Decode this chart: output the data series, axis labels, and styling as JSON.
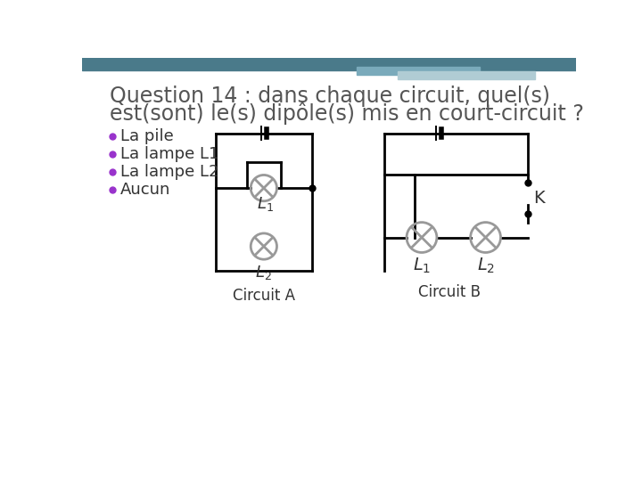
{
  "title_line1": "Question 14 : dans chaque circuit, quel(s)",
  "title_line2": "est(sont) le(s) dipôle(s) mis en court-circuit ?",
  "title_fontsize": 17,
  "title_color": "#555555",
  "bullet_color": "#9933cc",
  "bullet_items": [
    "La pile",
    "La lampe L1",
    "La lampe L2",
    "Aucun"
  ],
  "bullet_fontsize": 13,
  "circuit_a_label": "Circuit A",
  "circuit_b_label": "Circuit B",
  "background_color": "#ffffff",
  "header_color1": "#4a7a8a",
  "header_color2": "#7aaabb",
  "header_color3": "#b0ccd4",
  "line_color": "#000000",
  "lamp_color": "#999999",
  "lw": 2.0
}
